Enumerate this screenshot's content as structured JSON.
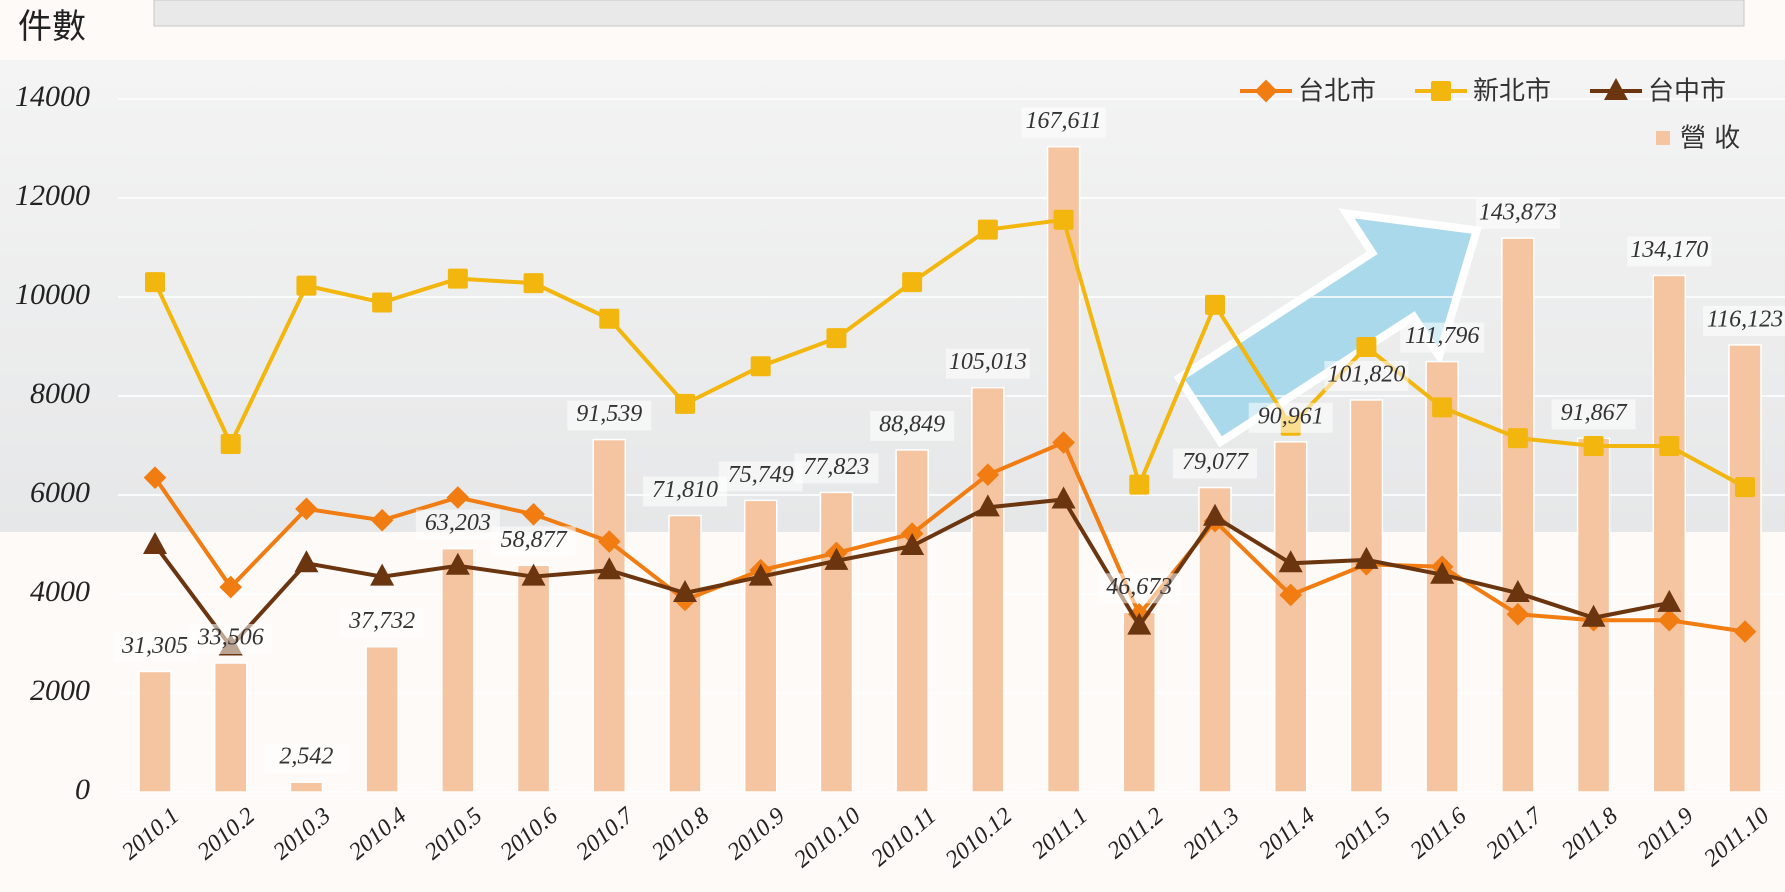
{
  "chart_data": {
    "type": "combo",
    "y_label": "件數",
    "categories": [
      "2010.1",
      "2010.2",
      "2010.3",
      "2010.4",
      "2010.5",
      "2010.6",
      "2010.7",
      "2010.8",
      "2010.9",
      "2010.10",
      "2010.11",
      "2010.12",
      "2011.1",
      "2011.2",
      "2011.3",
      "2011.4",
      "2011.5",
      "2011.6",
      "2011.7",
      "2011.8",
      "2011.9",
      "2011.10"
    ],
    "ylim": [
      0,
      14000
    ],
    "yticks": [
      0,
      2000,
      4000,
      6000,
      8000,
      10000,
      12000,
      14000
    ],
    "y2lim": [
      0,
      180000
    ],
    "grid": true,
    "legend": "top-right",
    "series": [
      {
        "name": "營 收",
        "type": "bar",
        "axis": "y2",
        "color": "#f5c4a0",
        "values": [
          31305,
          33506,
          2542,
          37732,
          63203,
          58877,
          91539,
          71810,
          75749,
          77823,
          88849,
          105013,
          167611,
          46673,
          79077,
          90961,
          101820,
          111796,
          143873,
          91867,
          134170,
          116123
        ],
        "value_labels": [
          "31,305",
          "33,506",
          "2,542",
          "37,732",
          "63,203",
          "58,877",
          "91,539",
          "71,810",
          "75,749",
          "77,823",
          "88,849",
          "105,013",
          "167,611",
          "46,673",
          "79,077",
          "90,961",
          "101,820",
          "111,796",
          "143,873",
          "91,867",
          "134,170",
          "116,123"
        ]
      },
      {
        "name": "台北市",
        "type": "line",
        "marker": "diamond",
        "color": "#f07c12",
        "values": [
          6350,
          4140,
          5720,
          5490,
          5950,
          5610,
          5060,
          3880,
          4480,
          4830,
          5220,
          6410,
          7060,
          3590,
          5470,
          3980,
          4600,
          4550,
          3590,
          3470,
          3470,
          3240
        ]
      },
      {
        "name": "新北市",
        "type": "line",
        "marker": "square",
        "color": "#f2b60e",
        "values": [
          10300,
          7030,
          10230,
          9890,
          10370,
          10280,
          9560,
          7840,
          8600,
          9170,
          10300,
          11360,
          11560,
          6210,
          9840,
          7400,
          8990,
          7770,
          7150,
          6990,
          6990,
          6160
        ]
      },
      {
        "name": "台中市",
        "type": "line",
        "marker": "triangle",
        "color": "#6b3510",
        "values": [
          4990,
          2940,
          4620,
          4350,
          4570,
          4350,
          4480,
          4020,
          4350,
          4670,
          4970,
          5750,
          5910,
          3360,
          5560,
          4620,
          4690,
          4390,
          4020,
          3520,
          3820,
          null
        ]
      }
    ]
  }
}
